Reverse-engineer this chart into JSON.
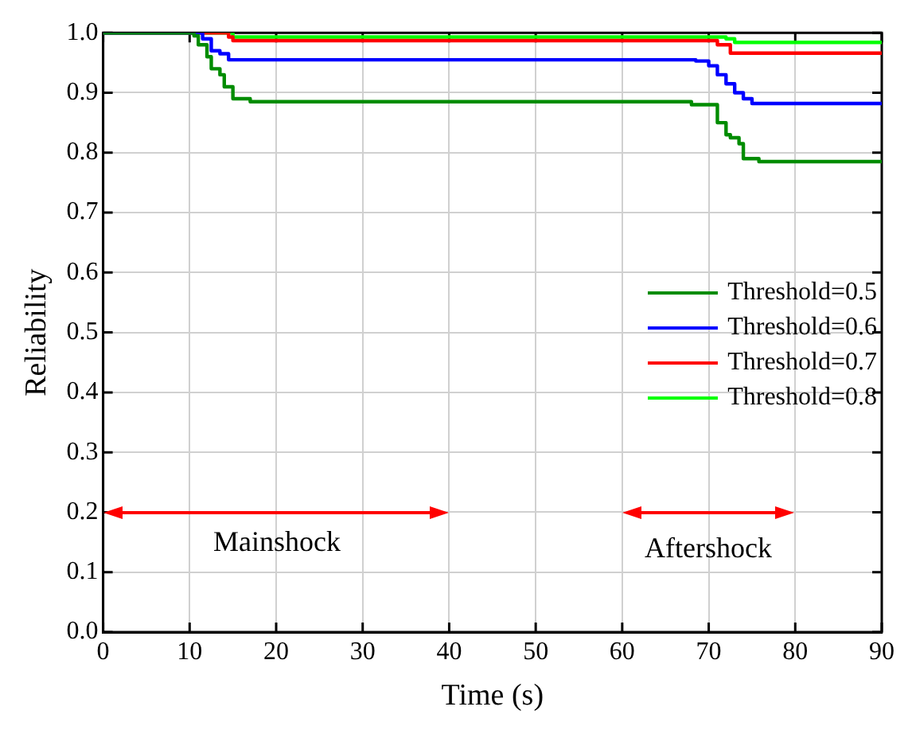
{
  "chart_data": {
    "type": "step",
    "xlabel": "Time (s)",
    "ylabel": "Reliability",
    "xlim": [
      0,
      90
    ],
    "xticks": [
      0,
      10,
      20,
      30,
      40,
      50,
      60,
      70,
      80,
      90
    ],
    "ylim": [
      0,
      1.0
    ],
    "yticks": [
      {
        "value": 0,
        "label": "0.0"
      },
      0.1,
      0.2,
      0.3,
      0.4,
      0.5,
      0.6,
      0.7,
      0.8,
      0.9,
      {
        "value": 1,
        "label": "1.0"
      }
    ],
    "grid": true,
    "legend": "right",
    "marker": "none",
    "line_style": "solid",
    "series": [
      {
        "name": "Threshold=0.5",
        "color": "#008c00",
        "x": [
          0,
          10.5,
          11,
          12,
          12.5,
          13.5,
          14,
          15,
          15.5,
          17,
          68,
          71,
          72,
          72.5,
          73.5,
          74,
          75.8,
          90
        ],
        "values": [
          1,
          0.995,
          0.98,
          0.96,
          0.94,
          0.93,
          0.91,
          0.89,
          0.89,
          0.885,
          0.88,
          0.85,
          0.83,
          0.825,
          0.815,
          0.79,
          0.785,
          0.785
        ]
      },
      {
        "name": "Threshold=0.6",
        "color": "#0000ff",
        "x": [
          0,
          11.5,
          12.5,
          13.5,
          14.5,
          68.5,
          70,
          71,
          72,
          73,
          74,
          75,
          90
        ],
        "values": [
          1,
          0.99,
          0.97,
          0.965,
          0.955,
          0.953,
          0.945,
          0.93,
          0.915,
          0.9,
          0.89,
          0.882,
          0.882
        ]
      },
      {
        "name": "Threshold=0.7",
        "color": "#ff0000",
        "x": [
          0,
          14.5,
          15,
          71,
          72.5,
          90
        ],
        "values": [
          1,
          0.993,
          0.987,
          0.98,
          0.966,
          0.966
        ]
      },
      {
        "name": "Threshold=0.8",
        "color": "#00ff00",
        "x": [
          0,
          15,
          72,
          73,
          90
        ],
        "values": [
          1,
          0.993,
          0.99,
          0.984,
          0.984
        ]
      }
    ],
    "annotations": [
      "Mainshock",
      "Aftershock"
    ]
  }
}
